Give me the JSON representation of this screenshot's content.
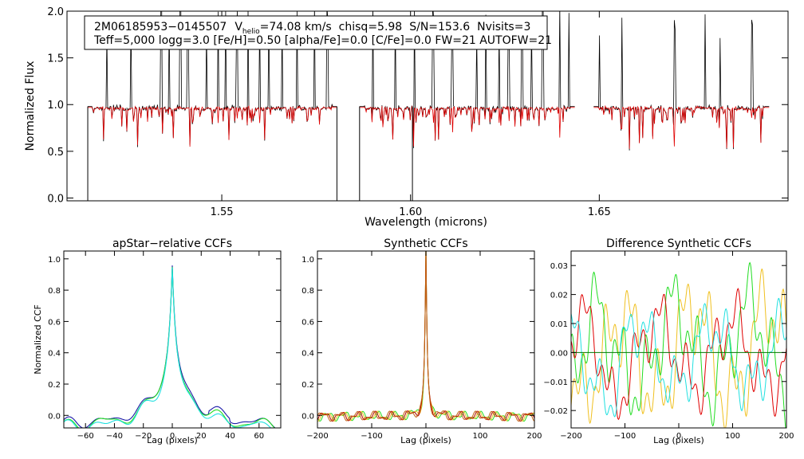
{
  "colors": {
    "black": "#000000",
    "red": "#e00000",
    "blue": "#1a1aa8",
    "green": "#22dd22",
    "cyan": "#20e0e0",
    "orange": "#f0c020",
    "darkred": "#b00000",
    "brown": "#c06010",
    "darkgreen": "#007700"
  },
  "chart_data": [
    {
      "type": "line",
      "id": "spectrum",
      "ylabel": "Normalized Flux",
      "xlabel": "Wavelength (microns)",
      "xlim": [
        1.509,
        1.7
      ],
      "ylim": [
        -0.03,
        2.0
      ],
      "xticks": [
        {
          "v": 1.55,
          "label": "1.55"
        },
        {
          "v": 1.6,
          "label": "1.60"
        },
        {
          "v": 1.65,
          "label": "1.65"
        }
      ],
      "yticks": [
        {
          "v": 0.0,
          "label": "0.0"
        },
        {
          "v": 0.5,
          "label": "0.5"
        },
        {
          "v": 1.0,
          "label": "1.0"
        },
        {
          "v": 1.5,
          "label": "1.5"
        },
        {
          "v": 2.0,
          "label": "2.0"
        }
      ],
      "info_line1": {
        "name": "2M06185953−0145507",
        "vhelio_label": "V",
        "vhelio_sub": "helio",
        "vhelio_value": "=74.08 km/s",
        "chisq": "chisq=5.98",
        "sn": "S/N=153.6",
        "nvisits": "Nvisits=3"
      },
      "info_line2": "Teff=5,000 logg=3.0 [Fe/H]=0.50 [alpha/Fe]=0.0 [C/Fe]=0.0 FW=21 AUTOFW=21",
      "segments": [
        [
          1.5145,
          1.5805
        ],
        [
          1.5865,
          1.6435
        ],
        [
          1.6485,
          1.695
        ]
      ],
      "drops": [
        1.5145,
        1.5805,
        1.5865,
        1.6005
      ],
      "spikes": [
        1.5195,
        1.526,
        1.534,
        1.536,
        1.539,
        1.541,
        1.546,
        1.549,
        1.551,
        1.554,
        1.557,
        1.56,
        1.5625,
        1.566,
        1.57,
        1.5745,
        1.578,
        1.59,
        1.596,
        1.601,
        1.606,
        1.611,
        1.6175,
        1.62,
        1.6235,
        1.626,
        1.6295,
        1.632,
        1.635,
        1.6395,
        1.642,
        1.65,
        1.656,
        1.67,
        1.678,
        1.682,
        1.6905
      ],
      "series": [
        {
          "name": "observed",
          "color": "black"
        },
        {
          "name": "model",
          "color": "red"
        }
      ]
    },
    {
      "type": "line",
      "id": "apstar",
      "title": "apStar−relative CCFs",
      "ylabel": "Normalized CCF",
      "xlabel": "Lag (pixels)",
      "xlim": [
        -75,
        75
      ],
      "ylim": [
        -0.08,
        1.05
      ],
      "xticks": [
        {
          "v": -60,
          "label": "−60"
        },
        {
          "v": -40,
          "label": "−40"
        },
        {
          "v": -20,
          "label": "−20"
        },
        {
          "v": 0,
          "label": "0"
        },
        {
          "v": 20,
          "label": "20"
        },
        {
          "v": 40,
          "label": "40"
        },
        {
          "v": 60,
          "label": "60"
        }
      ],
      "yticks": [
        {
          "v": 0.0,
          "label": "0.0"
        },
        {
          "v": 0.2,
          "label": "0.2"
        },
        {
          "v": 0.4,
          "label": "0.4"
        },
        {
          "v": 0.6,
          "label": "0.6"
        },
        {
          "v": 0.8,
          "label": "0.8"
        },
        {
          "v": 1.0,
          "label": "1.0"
        }
      ],
      "series": [
        {
          "name": "blue",
          "color": "blue"
        },
        {
          "name": "green",
          "color": "green"
        },
        {
          "name": "cyan",
          "color": "cyan"
        }
      ]
    },
    {
      "type": "line",
      "id": "synth",
      "title": "Synthetic CCFs",
      "xlabel": "Lag (pixels)",
      "xlim": [
        -200,
        200
      ],
      "ylim": [
        -0.08,
        1.05
      ],
      "xticks": [
        {
          "v": -200,
          "label": "−200"
        },
        {
          "v": -100,
          "label": "−100"
        },
        {
          "v": 0,
          "label": "0"
        },
        {
          "v": 100,
          "label": "100"
        },
        {
          "v": 200,
          "label": "200"
        }
      ],
      "yticks": [
        {
          "v": 0.0,
          "label": "0.0"
        },
        {
          "v": 0.2,
          "label": "0.2"
        },
        {
          "v": 0.4,
          "label": "0.4"
        },
        {
          "v": 0.6,
          "label": "0.6"
        },
        {
          "v": 0.8,
          "label": "0.8"
        },
        {
          "v": 1.0,
          "label": "1.0"
        }
      ],
      "series": [
        {
          "name": "green",
          "color": "green"
        },
        {
          "name": "orange",
          "color": "orange"
        },
        {
          "name": "red",
          "color": "darkred"
        },
        {
          "name": "brown",
          "color": "brown"
        }
      ]
    },
    {
      "type": "line",
      "id": "diff",
      "title": "Difference Synthetic CCFs",
      "xlabel": "Lag (pixels)",
      "xlim": [
        -200,
        200
      ],
      "ylim": [
        -0.026,
        0.035
      ],
      "xticks": [
        {
          "v": -200,
          "label": "−200"
        },
        {
          "v": -100,
          "label": "−100"
        },
        {
          "v": 0,
          "label": "0"
        },
        {
          "v": 100,
          "label": "100"
        },
        {
          "v": 200,
          "label": "200"
        }
      ],
      "yticks": [
        {
          "v": -0.02,
          "label": "−0.02"
        },
        {
          "v": -0.01,
          "label": "−0.01"
        },
        {
          "v": 0.0,
          "label": "0.00"
        },
        {
          "v": 0.01,
          "label": "0.01"
        },
        {
          "v": 0.02,
          "label": "0.02"
        },
        {
          "v": 0.03,
          "label": "0.03"
        }
      ],
      "series": [
        {
          "name": "orange",
          "color": "orange"
        },
        {
          "name": "green",
          "color": "green"
        },
        {
          "name": "red",
          "color": "red"
        },
        {
          "name": "cyan",
          "color": "cyan"
        },
        {
          "name": "zero",
          "color": "darkgreen"
        }
      ]
    }
  ]
}
